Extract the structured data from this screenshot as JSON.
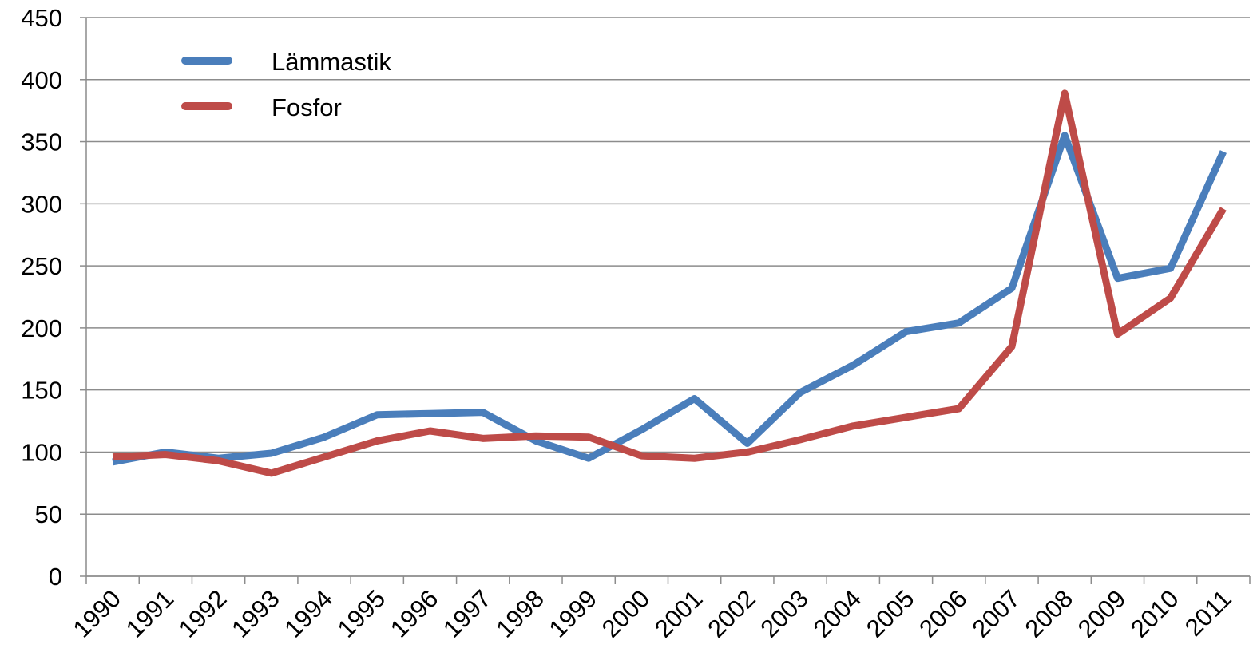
{
  "chart_data": {
    "type": "line",
    "categories": [
      "1990",
      "1991",
      "1992",
      "1993",
      "1994",
      "1995",
      "1996",
      "1997",
      "1998",
      "1999",
      "2000",
      "2001",
      "2002",
      "2003",
      "2004",
      "2005",
      "2006",
      "2007",
      "2008",
      "2009",
      "2010",
      "2011"
    ],
    "series": [
      {
        "name": "Lämmastik",
        "color": "#4a7ebb",
        "values": [
          92,
          100,
          95,
          99,
          112,
          130,
          131,
          132,
          109,
          95,
          118,
          143,
          107,
          148,
          170,
          197,
          204,
          232,
          355,
          240,
          248,
          342
        ]
      },
      {
        "name": "Fosfor",
        "color": "#be4b48",
        "values": [
          96,
          98,
          93,
          83,
          96,
          109,
          117,
          111,
          113,
          112,
          97,
          95,
          100,
          110,
          121,
          128,
          135,
          185,
          389,
          195,
          224,
          296
        ]
      }
    ],
    "ylim": [
      0,
      450
    ],
    "yticks": [
      0,
      50,
      100,
      150,
      200,
      250,
      300,
      350,
      400,
      450
    ],
    "grid": true,
    "legend": "top-left"
  }
}
